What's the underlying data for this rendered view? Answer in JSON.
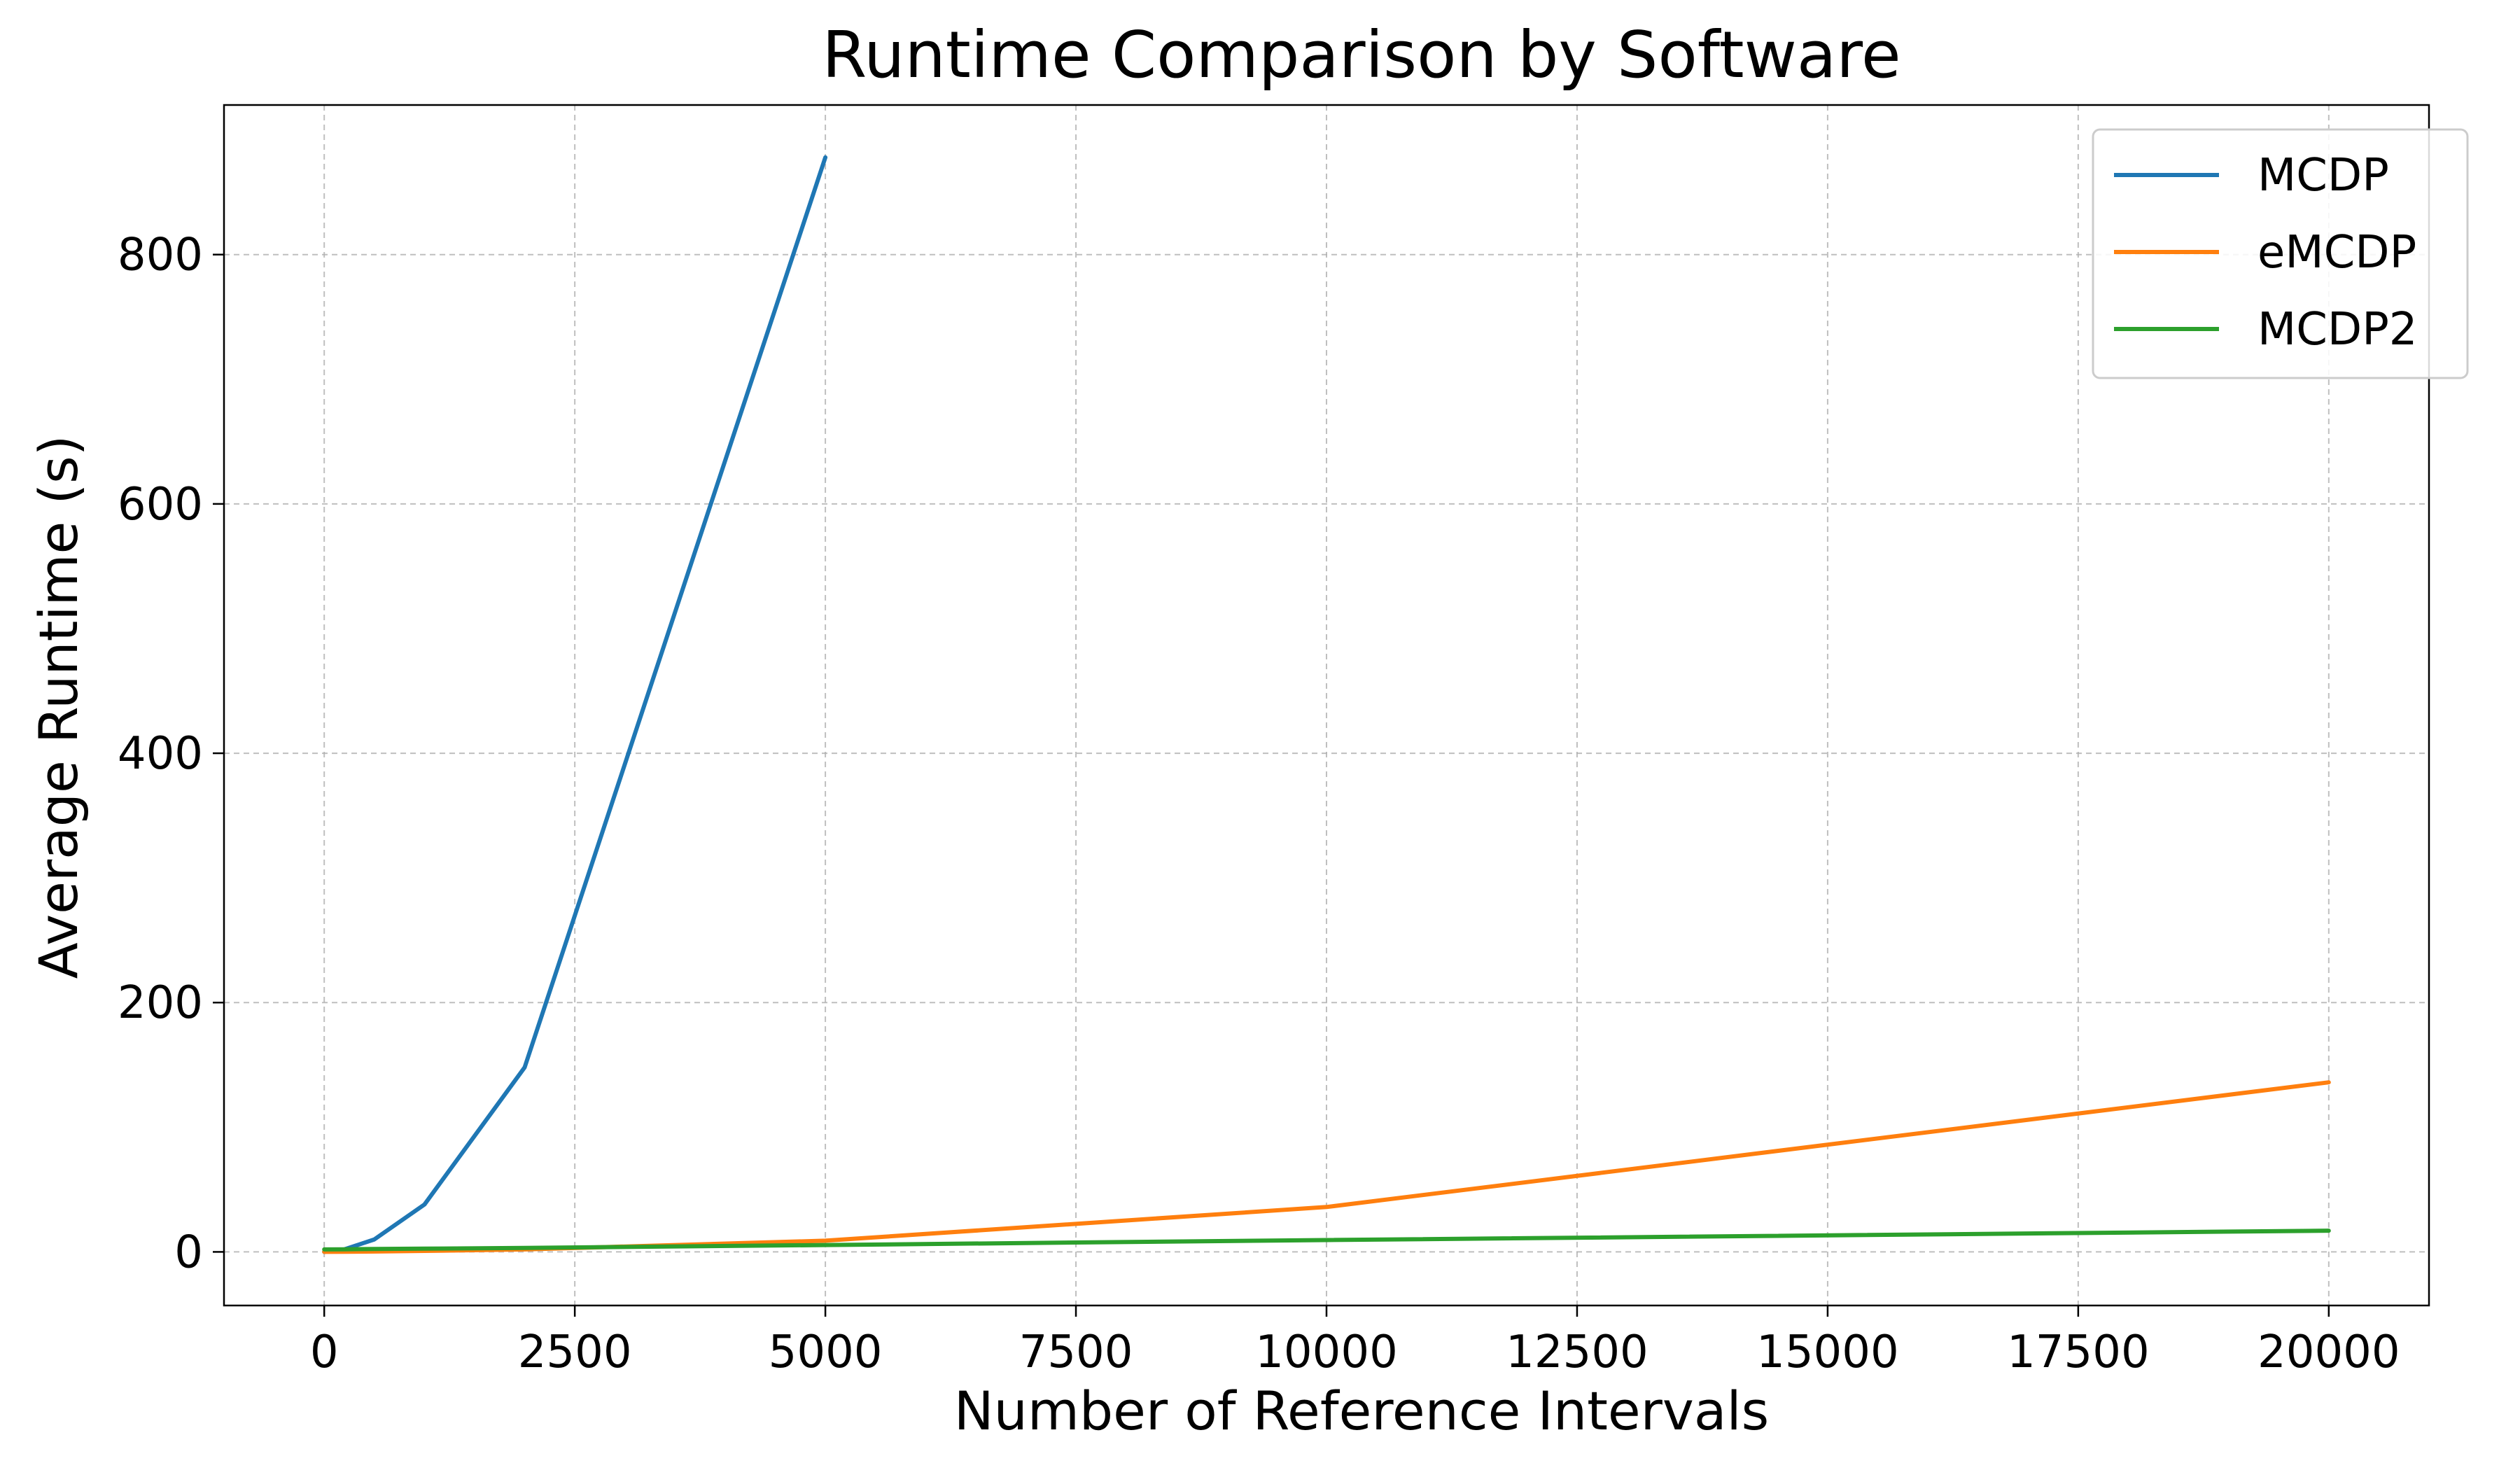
{
  "chart_data": {
    "type": "line",
    "title": "Runtime Comparison by Software",
    "xlabel": "Number of Reference Intervals",
    "ylabel": "Average Runtime (s)",
    "xlim": [
      -1000,
      21000
    ],
    "ylim": [
      -43,
      920
    ],
    "xticks": [
      0,
      2500,
      5000,
      7500,
      10000,
      12500,
      15000,
      17500,
      20000
    ],
    "yticks": [
      0,
      200,
      400,
      600,
      800
    ],
    "grid": true,
    "legend_position": "top-right",
    "series": [
      {
        "name": "MCDP",
        "color": "#1f77b4",
        "x": [
          0,
          200,
          500,
          1000,
          2000,
          5000
        ],
        "y": [
          0,
          2,
          10,
          38,
          148,
          878
        ]
      },
      {
        "name": "eMCDP",
        "color": "#ff7f0e",
        "x": [
          0,
          200,
          500,
          1000,
          2000,
          5000,
          10000,
          20000
        ],
        "y": [
          0,
          0.1,
          0.3,
          0.8,
          2,
          9,
          36,
          136
        ]
      },
      {
        "name": "MCDP2",
        "color": "#2ca02c",
        "x": [
          0,
          200,
          500,
          1000,
          2000,
          5000,
          10000,
          20000
        ],
        "y": [
          2,
          2.1,
          2.3,
          2.6,
          3.2,
          5.5,
          9.5,
          17
        ]
      }
    ]
  }
}
